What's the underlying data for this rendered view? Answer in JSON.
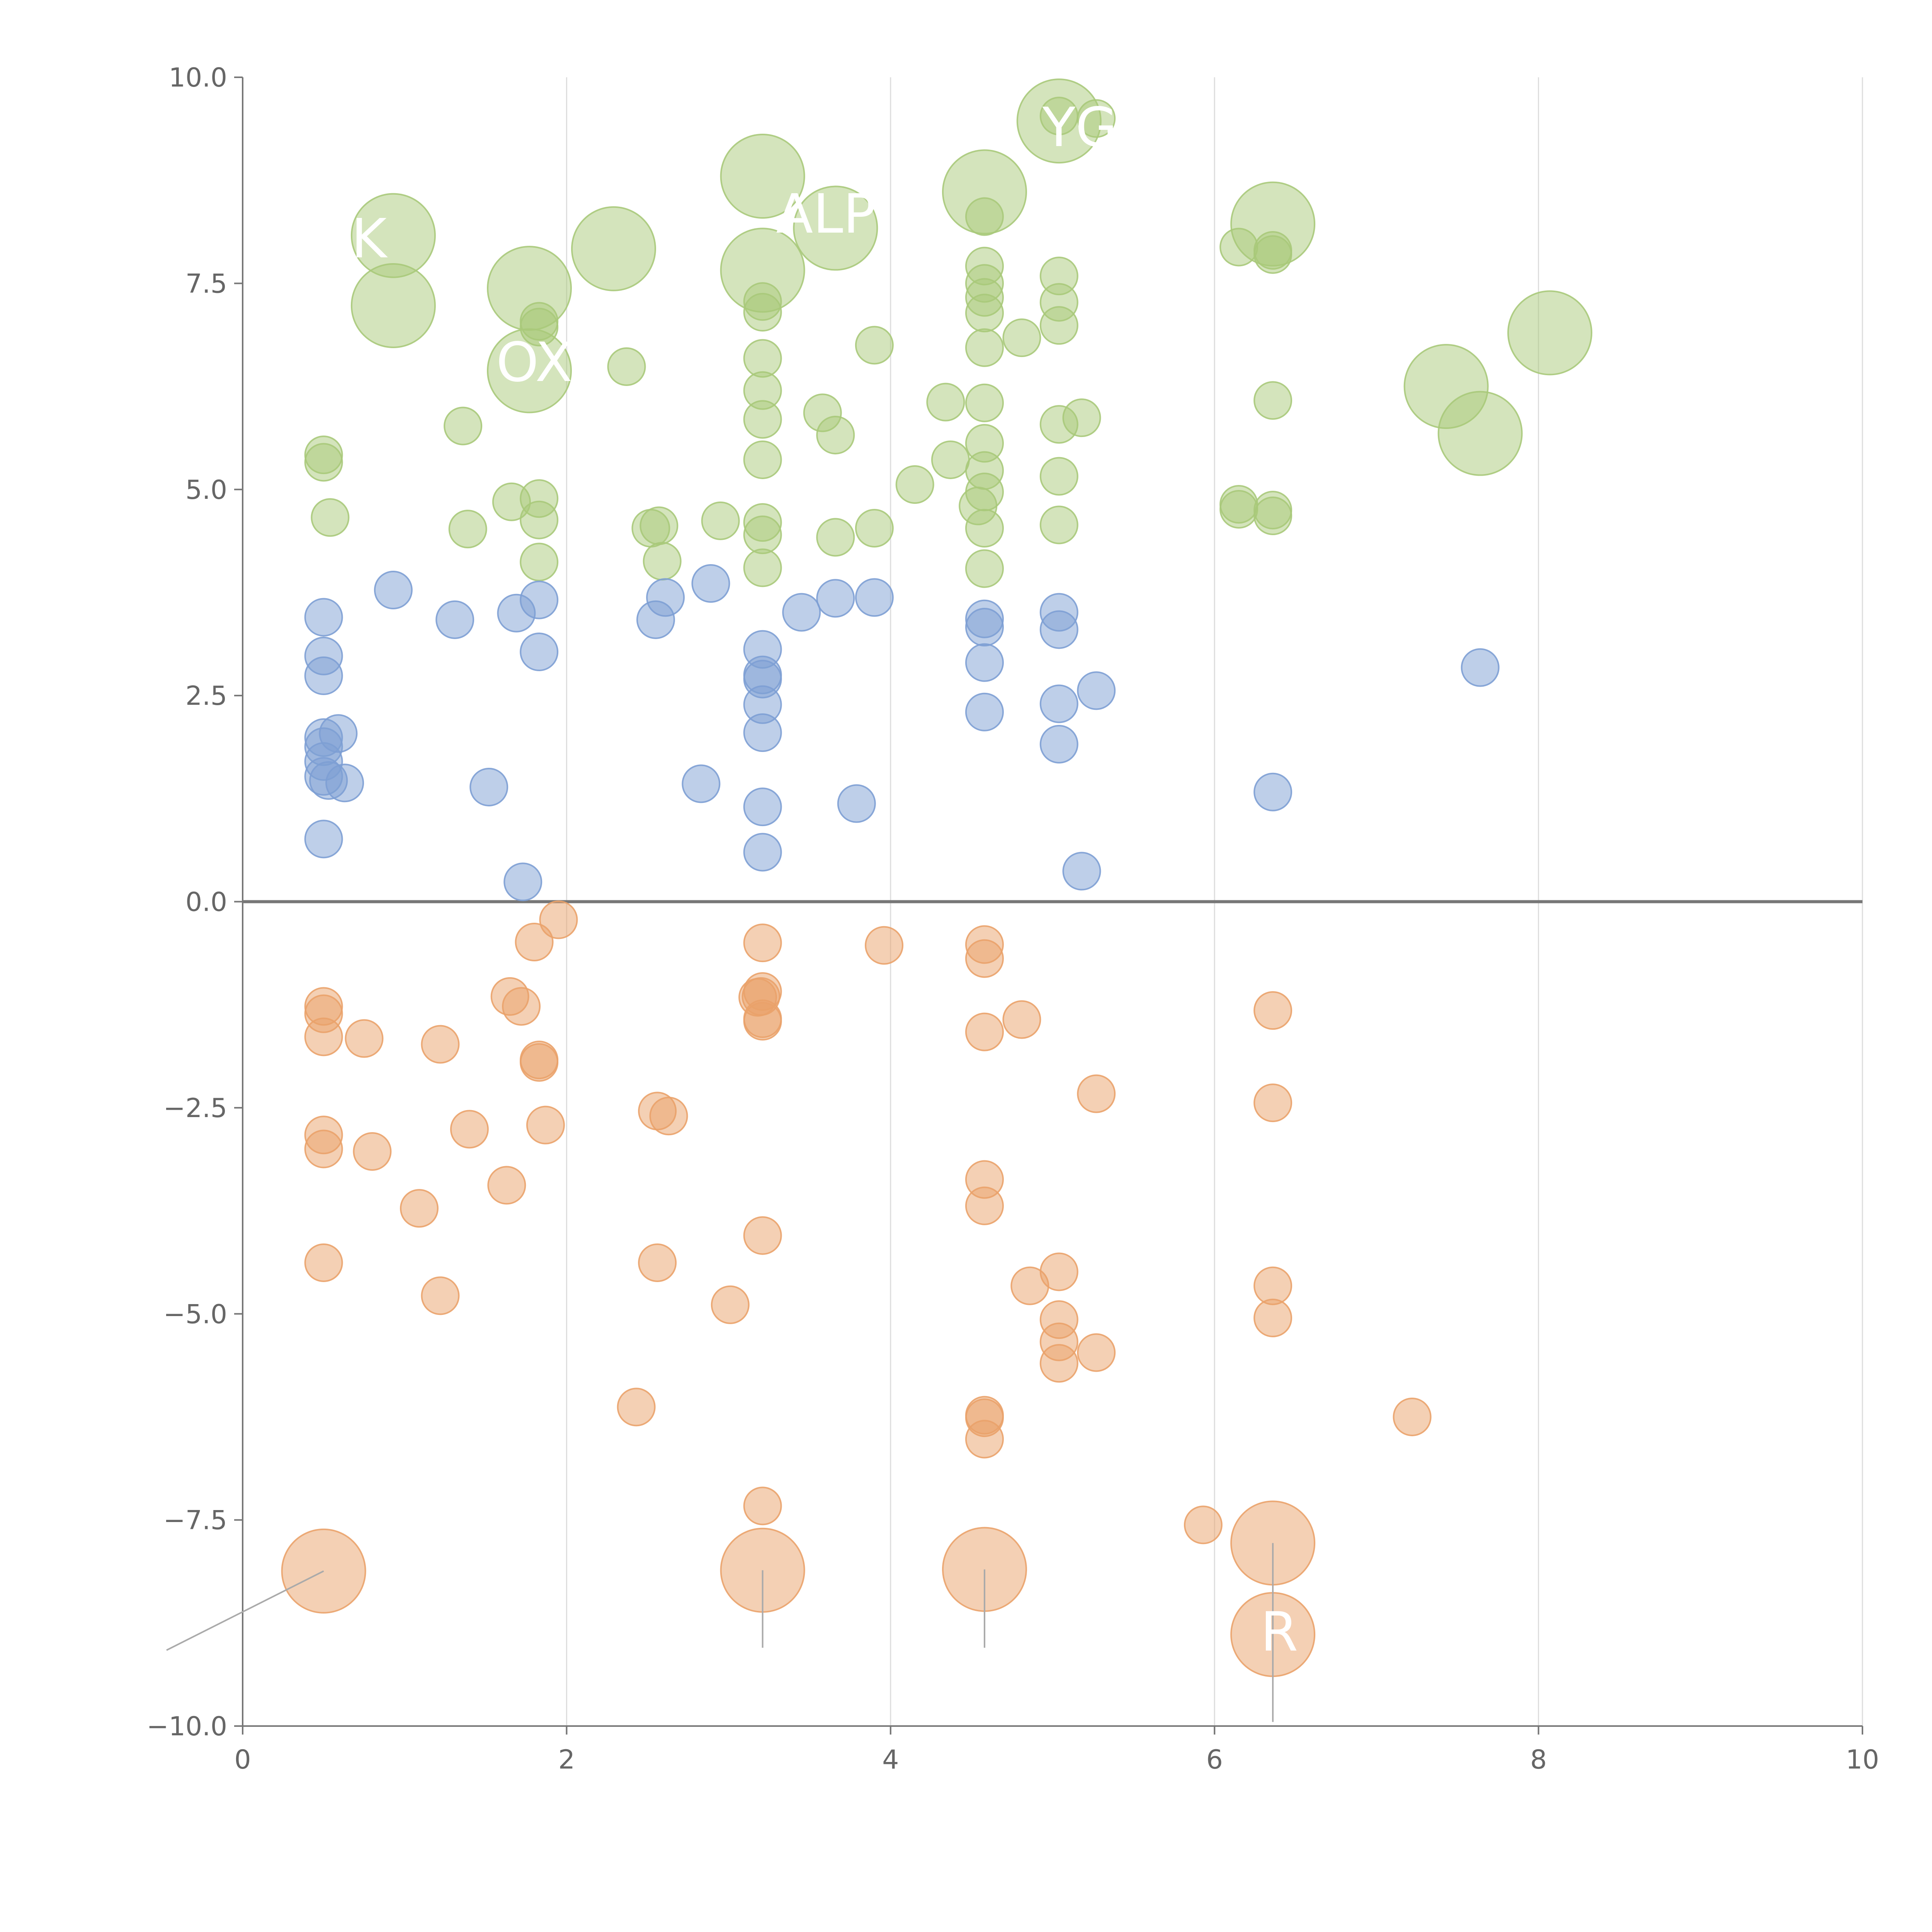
{
  "colors": {
    "up_high": "#a9c97a",
    "up_low": "#7d9fd4",
    "down": "#eaa26a",
    "axis": "#777777",
    "grid": "#dddddd",
    "zero_line": "#777777",
    "connector": "#aaaaaa",
    "label": "#ffffff"
  },
  "chart_data": {
    "type": "scatter",
    "title": "",
    "xlabel": "",
    "ylabel": "",
    "xlim": [
      0,
      10
    ],
    "ylim": [
      -10,
      10
    ],
    "x_ticks": [
      "0",
      "2",
      "4",
      "6",
      "8",
      "10"
    ],
    "x_tick_values": [
      0,
      2,
      4,
      6,
      8,
      10
    ],
    "y_ticks": [
      "10.0",
      "7.5",
      "5.0",
      "2.5",
      "0.0",
      "−2.5",
      "−5.0",
      "−7.5",
      "−10.0"
    ],
    "y_tick_values": [
      10,
      7.5,
      5,
      2.5,
      0,
      -2.5,
      -5,
      -7.5,
      -10
    ],
    "vertical_grid": true,
    "zero_line": true,
    "series": [
      {
        "name": "up_high",
        "color": "#a9c97a",
        "points": [
          [
            0.5,
            5.42,
            1
          ],
          [
            0.5,
            5.33,
            1
          ],
          [
            0.54,
            4.66,
            1
          ],
          [
            0.93,
            8.08,
            2
          ],
          [
            0.93,
            7.23,
            2
          ],
          [
            1.36,
            5.77,
            1
          ],
          [
            1.39,
            4.52,
            1
          ],
          [
            1.66,
            4.85,
            1
          ],
          [
            1.77,
            7.44,
            2
          ],
          [
            1.77,
            6.44,
            2
          ],
          [
            1.83,
            7.04,
            1
          ],
          [
            1.83,
            6.97,
            1
          ],
          [
            1.83,
            4.89,
            1
          ],
          [
            1.83,
            4.63,
            1
          ],
          [
            1.83,
            4.12,
            1
          ],
          [
            2.29,
            7.92,
            2
          ],
          [
            2.37,
            6.49,
            1
          ],
          [
            2.52,
            4.53,
            1
          ],
          [
            2.57,
            4.56,
            1
          ],
          [
            2.59,
            4.13,
            1
          ],
          [
            2.95,
            4.62,
            1
          ],
          [
            3.21,
            8.8,
            2
          ],
          [
            3.21,
            7.66,
            2
          ],
          [
            3.21,
            7.28,
            1
          ],
          [
            3.21,
            7.15,
            1
          ],
          [
            3.21,
            6.59,
            1
          ],
          [
            3.21,
            6.2,
            1
          ],
          [
            3.21,
            5.85,
            1
          ],
          [
            3.21,
            5.36,
            1
          ],
          [
            3.21,
            4.6,
            1
          ],
          [
            3.21,
            4.45,
            1
          ],
          [
            3.21,
            4.05,
            1
          ],
          [
            3.66,
            8.17,
            2
          ],
          [
            3.58,
            5.93,
            1
          ],
          [
            3.66,
            5.66,
            1
          ],
          [
            3.66,
            4.42,
            1
          ],
          [
            3.9,
            6.75,
            1
          ],
          [
            3.9,
            4.53,
            1
          ],
          [
            4.15,
            5.06,
            1
          ],
          [
            4.34,
            6.06,
            1
          ],
          [
            4.37,
            5.36,
            1
          ],
          [
            4.58,
            8.61,
            2
          ],
          [
            4.58,
            8.31,
            1
          ],
          [
            4.58,
            7.71,
            1
          ],
          [
            4.58,
            7.5,
            1
          ],
          [
            4.58,
            7.33,
            1
          ],
          [
            4.58,
            7.14,
            1
          ],
          [
            4.58,
            6.72,
            1
          ],
          [
            4.58,
            6.05,
            1
          ],
          [
            4.58,
            5.56,
            1
          ],
          [
            4.58,
            5.23,
            1
          ],
          [
            4.58,
            4.97,
            1
          ],
          [
            4.54,
            4.8,
            1
          ],
          [
            4.58,
            4.53,
            1
          ],
          [
            4.58,
            4.04,
            1
          ],
          [
            4.81,
            6.84,
            1
          ],
          [
            5.04,
            9.47,
            2
          ],
          [
            5.04,
            9.53,
            1
          ],
          [
            5.27,
            9.5,
            1
          ],
          [
            5.04,
            7.59,
            1
          ],
          [
            5.04,
            7.27,
            1
          ],
          [
            5.04,
            6.99,
            1
          ],
          [
            5.04,
            5.79,
            1
          ],
          [
            5.18,
            5.87,
            1
          ],
          [
            5.04,
            5.16,
            1
          ],
          [
            5.04,
            4.57,
            1
          ],
          [
            6.15,
            7.94,
            1
          ],
          [
            6.36,
            8.22,
            2
          ],
          [
            6.36,
            7.9,
            1
          ],
          [
            6.36,
            7.85,
            1
          ],
          [
            6.36,
            6.08,
            1
          ],
          [
            6.15,
            4.82,
            1
          ],
          [
            6.15,
            4.76,
            1
          ],
          [
            6.36,
            4.75,
            1
          ],
          [
            6.36,
            4.68,
            1
          ],
          [
            7.43,
            6.25,
            2
          ],
          [
            7.64,
            5.68,
            2
          ],
          [
            8.07,
            6.9,
            2
          ]
        ]
      },
      {
        "name": "up_low",
        "color": "#7d9fd4",
        "points": [
          [
            0.93,
            3.78,
            1
          ],
          [
            0.5,
            3.45,
            1
          ],
          [
            0.5,
            2.98,
            1
          ],
          [
            0.5,
            2.74,
            1
          ],
          [
            0.5,
            1.99,
            1
          ],
          [
            0.5,
            1.88,
            1
          ],
          [
            0.5,
            1.7,
            1
          ],
          [
            0.5,
            1.52,
            1
          ],
          [
            0.53,
            1.47,
            1
          ],
          [
            0.59,
            2.04,
            1
          ],
          [
            0.63,
            1.44,
            1
          ],
          [
            0.5,
            0.76,
            1
          ],
          [
            1.31,
            3.42,
            1
          ],
          [
            1.52,
            1.39,
            1
          ],
          [
            1.69,
            3.5,
            1
          ],
          [
            1.73,
            0.24,
            1
          ],
          [
            1.83,
            3.66,
            1
          ],
          [
            1.83,
            3.03,
            1
          ],
          [
            2.55,
            3.42,
            1
          ],
          [
            2.61,
            3.69,
            1
          ],
          [
            2.83,
            1.43,
            1
          ],
          [
            2.89,
            3.86,
            1
          ],
          [
            3.21,
            3.06,
            1
          ],
          [
            3.21,
            2.75,
            1
          ],
          [
            3.21,
            2.7,
            1
          ],
          [
            3.21,
            2.39,
            1
          ],
          [
            3.21,
            2.05,
            1
          ],
          [
            3.21,
            1.15,
            1
          ],
          [
            3.21,
            0.6,
            1
          ],
          [
            3.45,
            3.51,
            1
          ],
          [
            3.66,
            3.68,
            1
          ],
          [
            3.79,
            1.19,
            1
          ],
          [
            3.9,
            3.69,
            1
          ],
          [
            4.58,
            3.43,
            1
          ],
          [
            4.58,
            3.33,
            1
          ],
          [
            4.58,
            2.9,
            1
          ],
          [
            4.58,
            2.3,
            1
          ],
          [
            5.04,
            3.51,
            1
          ],
          [
            5.04,
            3.3,
            1
          ],
          [
            5.04,
            2.4,
            1
          ],
          [
            5.04,
            1.91,
            1
          ],
          [
            5.27,
            2.56,
            1
          ],
          [
            5.18,
            0.37,
            1
          ],
          [
            6.36,
            1.33,
            1
          ],
          [
            7.64,
            2.84,
            1
          ]
        ]
      },
      {
        "name": "down",
        "color": "#eaa26a",
        "points": [
          [
            1.95,
            -0.22,
            1
          ],
          [
            1.8,
            -0.49,
            1
          ],
          [
            1.65,
            -1.15,
            1
          ],
          [
            1.72,
            -1.27,
            1
          ],
          [
            0.5,
            -1.27,
            1
          ],
          [
            0.5,
            -1.36,
            1
          ],
          [
            0.5,
            -1.64,
            1
          ],
          [
            0.75,
            -1.66,
            1
          ],
          [
            1.22,
            -1.73,
            1
          ],
          [
            1.83,
            -1.92,
            1
          ],
          [
            1.83,
            -1.95,
            1
          ],
          [
            0.5,
            -2.83,
            1
          ],
          [
            0.5,
            -3.0,
            1
          ],
          [
            0.8,
            -3.03,
            1
          ],
          [
            1.4,
            -2.76,
            1
          ],
          [
            1.87,
            -2.71,
            1
          ],
          [
            2.56,
            -2.54,
            1
          ],
          [
            2.63,
            -2.6,
            1
          ],
          [
            1.09,
            -3.72,
            1
          ],
          [
            1.63,
            -3.44,
            1
          ],
          [
            0.5,
            -4.38,
            1
          ],
          [
            1.22,
            -4.78,
            1
          ],
          [
            2.56,
            -4.38,
            1
          ],
          [
            3.01,
            -4.89,
            1
          ],
          [
            2.43,
            -6.13,
            1
          ],
          [
            3.21,
            -0.5,
            1
          ],
          [
            3.21,
            -1.09,
            1
          ],
          [
            3.2,
            -1.15,
            1
          ],
          [
            3.18,
            -1.16,
            1
          ],
          [
            3.21,
            -1.42,
            1
          ],
          [
            3.21,
            -1.45,
            1
          ],
          [
            3.21,
            -4.05,
            1
          ],
          [
            3.21,
            -7.33,
            1
          ],
          [
            3.96,
            -0.53,
            1
          ],
          [
            4.58,
            -0.52,
            1
          ],
          [
            4.58,
            -0.69,
            1
          ],
          [
            4.81,
            -1.43,
            1
          ],
          [
            4.58,
            -1.58,
            1
          ],
          [
            4.58,
            -3.37,
            1
          ],
          [
            4.58,
            -3.69,
            1
          ],
          [
            4.58,
            -6.23,
            1
          ],
          [
            4.58,
            -6.26,
            1
          ],
          [
            4.58,
            -6.52,
            1
          ],
          [
            5.27,
            -2.33,
            1
          ],
          [
            4.86,
            -4.66,
            1
          ],
          [
            5.04,
            -4.49,
            1
          ],
          [
            5.04,
            -5.07,
            1
          ],
          [
            5.04,
            -5.34,
            1
          ],
          [
            5.27,
            -5.47,
            1
          ],
          [
            5.04,
            -5.6,
            1
          ],
          [
            6.36,
            -1.32,
            1
          ],
          [
            6.36,
            -2.44,
            1
          ],
          [
            6.36,
            -4.66,
            1
          ],
          [
            6.36,
            -5.05,
            1
          ],
          [
            5.93,
            -7.56,
            1
          ],
          [
            7.22,
            -6.25,
            1
          ],
          [
            0.5,
            -8.12,
            2
          ],
          [
            3.21,
            -8.11,
            2
          ],
          [
            4.58,
            -8.1,
            2
          ],
          [
            6.36,
            -7.78,
            2
          ],
          [
            6.36,
            -8.89,
            2
          ]
        ]
      }
    ],
    "labels": [
      {
        "text": "K",
        "x": 0.78,
        "y": 8.05
      },
      {
        "text": "OX",
        "x": 1.8,
        "y": 6.55
      },
      {
        "text": "ALPI",
        "x": 3.65,
        "y": 8.35
      },
      {
        "text": "YGO",
        "x": 5.3,
        "y": 9.4
      },
      {
        "text": "R",
        "x": 6.4,
        "y": -8.85
      }
    ],
    "connectors": [
      {
        "from": [
          0.5,
          -8.12
        ],
        "to": [
          -0.47,
          -9.08
        ]
      },
      {
        "from": [
          3.21,
          -8.11
        ],
        "to": [
          3.21,
          -9.05
        ]
      },
      {
        "from": [
          4.58,
          -8.1
        ],
        "to": [
          4.58,
          -9.05
        ]
      },
      {
        "from": [
          6.36,
          -7.78
        ],
        "to": [
          6.36,
          -9.95
        ]
      }
    ]
  }
}
